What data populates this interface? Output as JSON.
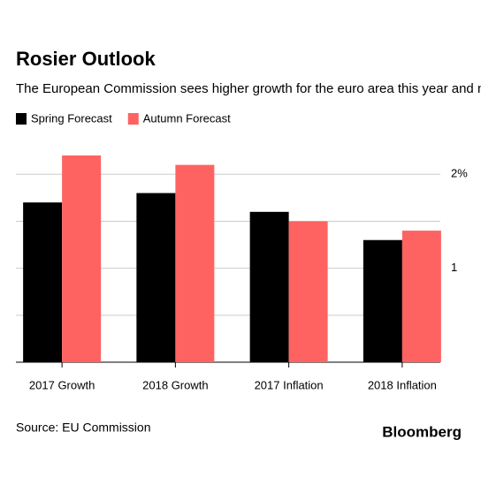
{
  "chart_data": {
    "type": "bar",
    "title": "Rosier Outlook",
    "subtitle": "The European Commission sees higher growth for the euro area this year and next",
    "categories": [
      "2017 Growth",
      "2018 Growth",
      "2017 Inflation",
      "2018 Inflation"
    ],
    "series": [
      {
        "name": "Spring Forecast",
        "color": "#000000",
        "values": [
          1.7,
          1.8,
          1.6,
          1.3
        ]
      },
      {
        "name": "Autumn Forecast",
        "color": "#ff6361",
        "values": [
          2.2,
          2.1,
          1.5,
          1.4
        ]
      }
    ],
    "ylim": [
      0,
      2.2
    ],
    "yticks": [
      {
        "value": 1,
        "label": "1"
      },
      {
        "value": 2,
        "label": "2%"
      }
    ],
    "gridlines": [
      0,
      0.5,
      1,
      1.5,
      2
    ],
    "source": "Source: EU Commission",
    "brand": "Bloomberg"
  }
}
